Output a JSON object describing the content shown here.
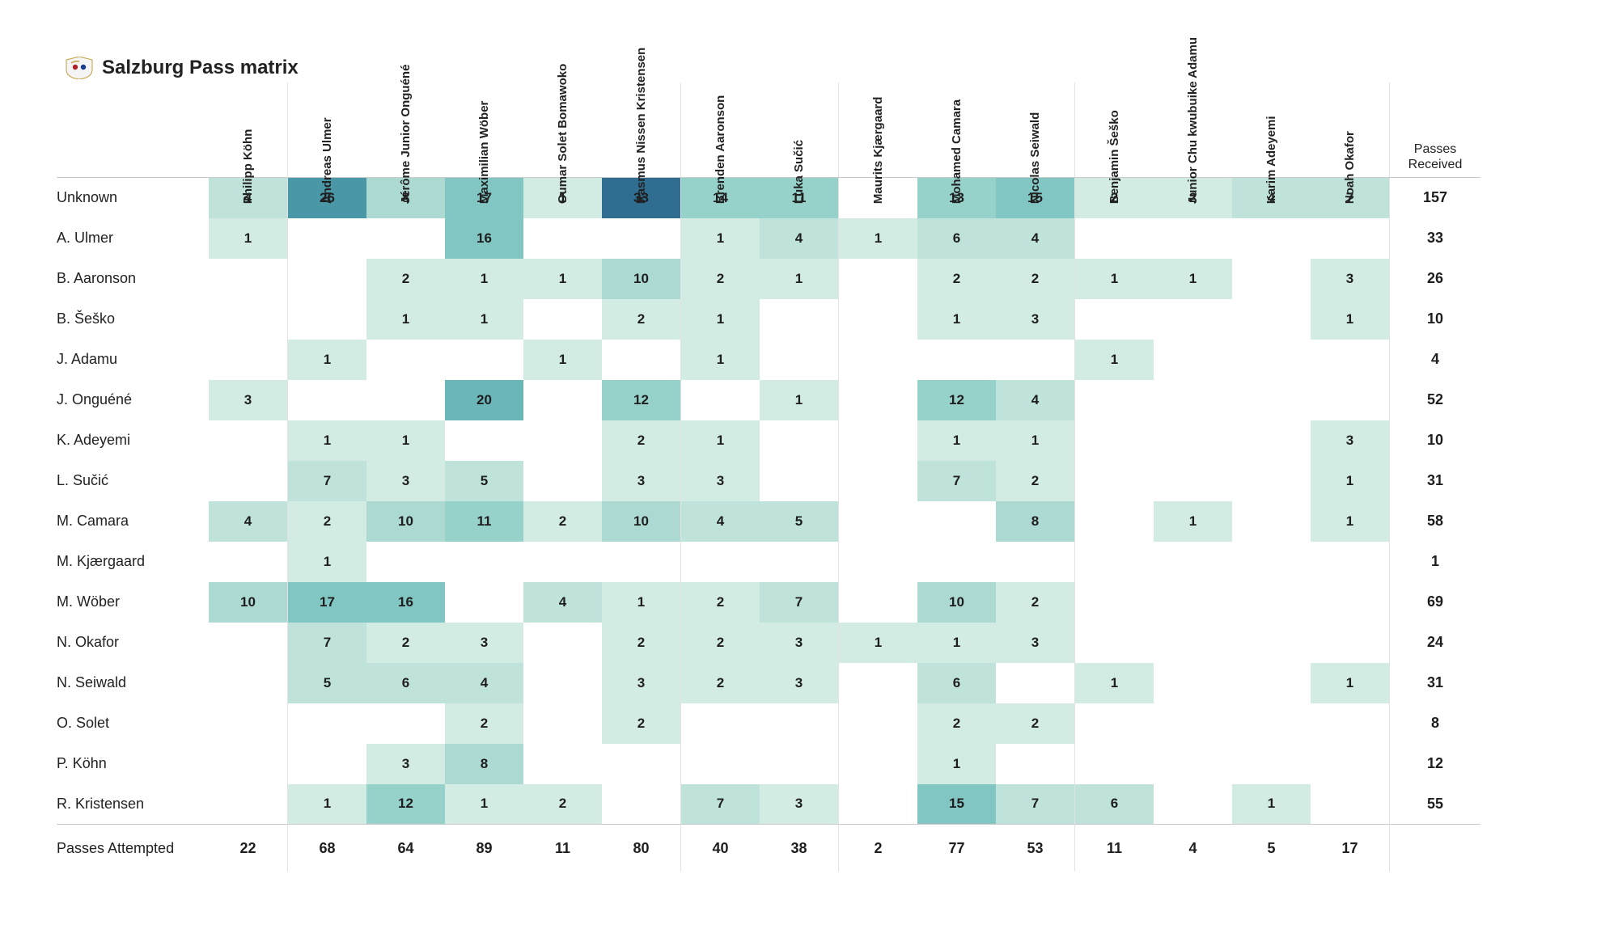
{
  "title": "Salzburg Pass matrix",
  "received_header": "Passes\nReceived",
  "attempted_label": "Passes Attempted",
  "heatmap_colors": {
    "empty": "#ffffff",
    "scale": [
      "#d2ece4",
      "#bfe3da",
      "#acd9d1",
      "#96d1ca",
      "#81c6c2",
      "#6bb6b9",
      "#5aa8b0",
      "#4a97a7",
      "#3b839b",
      "#2f6e90"
    ]
  },
  "scale_max": 33,
  "font": {
    "cell_size": 17,
    "cell_weight": 700,
    "row_size": 18,
    "col_size": 15,
    "title_size": 24
  },
  "column_headers": [
    "Philipp Köhn",
    "Andreas Ulmer",
    "Jérôme Junior Onguéné",
    "Maximilian Wöber",
    "Oumar Solet Bomawoko",
    "Rasmus Nissen Kristensen",
    "Brenden Aaronson",
    "Luka Sučić",
    "Maurits Kjærgaard",
    "Mohamed Camara",
    "Nicolas Seiwald",
    "Benjamin Šeško",
    "Junior Chu kwubuike Adamu",
    "Karim Adeyemi",
    "Noah Okafor"
  ],
  "rows": [
    {
      "label": "Unknown",
      "cells": [
        4,
        26,
        8,
        17,
        1,
        33,
        14,
        11,
        null,
        13,
        15,
        2,
        2,
        4,
        7
      ],
      "received": 157
    },
    {
      "label": "A. Ulmer",
      "cells": [
        1,
        null,
        null,
        16,
        null,
        null,
        1,
        4,
        1,
        6,
        4,
        null,
        null,
        null,
        null
      ],
      "received": 33
    },
    {
      "label": "B. Aaronson",
      "cells": [
        null,
        null,
        2,
        1,
        1,
        10,
        2,
        1,
        null,
        2,
        2,
        1,
        1,
        null,
        3
      ],
      "received": 26
    },
    {
      "label": "B. Šeško",
      "cells": [
        null,
        null,
        1,
        1,
        null,
        2,
        1,
        null,
        null,
        1,
        3,
        null,
        null,
        null,
        1
      ],
      "received": 10
    },
    {
      "label": "J. Adamu",
      "cells": [
        null,
        1,
        null,
        null,
        1,
        null,
        1,
        null,
        null,
        null,
        null,
        1,
        null,
        null,
        null
      ],
      "received": 4
    },
    {
      "label": "J. Onguéné",
      "cells": [
        3,
        null,
        null,
        20,
        null,
        12,
        null,
        1,
        null,
        12,
        4,
        null,
        null,
        null,
        null
      ],
      "received": 52
    },
    {
      "label": "K. Adeyemi",
      "cells": [
        null,
        1,
        1,
        null,
        null,
        2,
        1,
        null,
        null,
        1,
        1,
        null,
        null,
        null,
        3
      ],
      "received": 10
    },
    {
      "label": "L. Sučić",
      "cells": [
        null,
        7,
        3,
        5,
        null,
        3,
        3,
        null,
        null,
        7,
        2,
        null,
        null,
        null,
        1
      ],
      "received": 31
    },
    {
      "label": "M. Camara",
      "cells": [
        4,
        2,
        10,
        11,
        2,
        10,
        4,
        5,
        null,
        null,
        8,
        null,
        1,
        null,
        1
      ],
      "received": 58
    },
    {
      "label": "M. Kjærgaard",
      "cells": [
        null,
        1,
        null,
        null,
        null,
        null,
        null,
        null,
        null,
        null,
        null,
        null,
        null,
        null,
        null
      ],
      "received": 1
    },
    {
      "label": "M. Wöber",
      "cells": [
        10,
        17,
        16,
        null,
        4,
        1,
        2,
        7,
        null,
        10,
        2,
        null,
        null,
        null,
        null
      ],
      "received": 69
    },
    {
      "label": "N. Okafor",
      "cells": [
        null,
        7,
        2,
        3,
        null,
        2,
        2,
        3,
        1,
        1,
        3,
        null,
        null,
        null,
        null
      ],
      "received": 24
    },
    {
      "label": "N. Seiwald",
      "cells": [
        null,
        5,
        6,
        4,
        null,
        3,
        2,
        3,
        null,
        6,
        null,
        1,
        null,
        null,
        1
      ],
      "received": 31
    },
    {
      "label": "O. Solet",
      "cells": [
        null,
        null,
        null,
        2,
        null,
        2,
        null,
        null,
        null,
        2,
        2,
        null,
        null,
        null,
        null
      ],
      "received": 8
    },
    {
      "label": "P. Köhn",
      "cells": [
        null,
        null,
        3,
        8,
        null,
        null,
        null,
        null,
        null,
        1,
        null,
        null,
        null,
        null,
        null
      ],
      "received": 12
    },
    {
      "label": "R. Kristensen",
      "cells": [
        null,
        1,
        12,
        1,
        2,
        null,
        7,
        3,
        null,
        15,
        7,
        6,
        null,
        1,
        null
      ],
      "received": 55
    }
  ],
  "attempted": [
    22,
    68,
    64,
    89,
    11,
    80,
    40,
    38,
    2,
    77,
    53,
    11,
    4,
    5,
    17
  ],
  "column_sep_after": [
    0,
    5,
    7,
    10,
    14
  ]
}
